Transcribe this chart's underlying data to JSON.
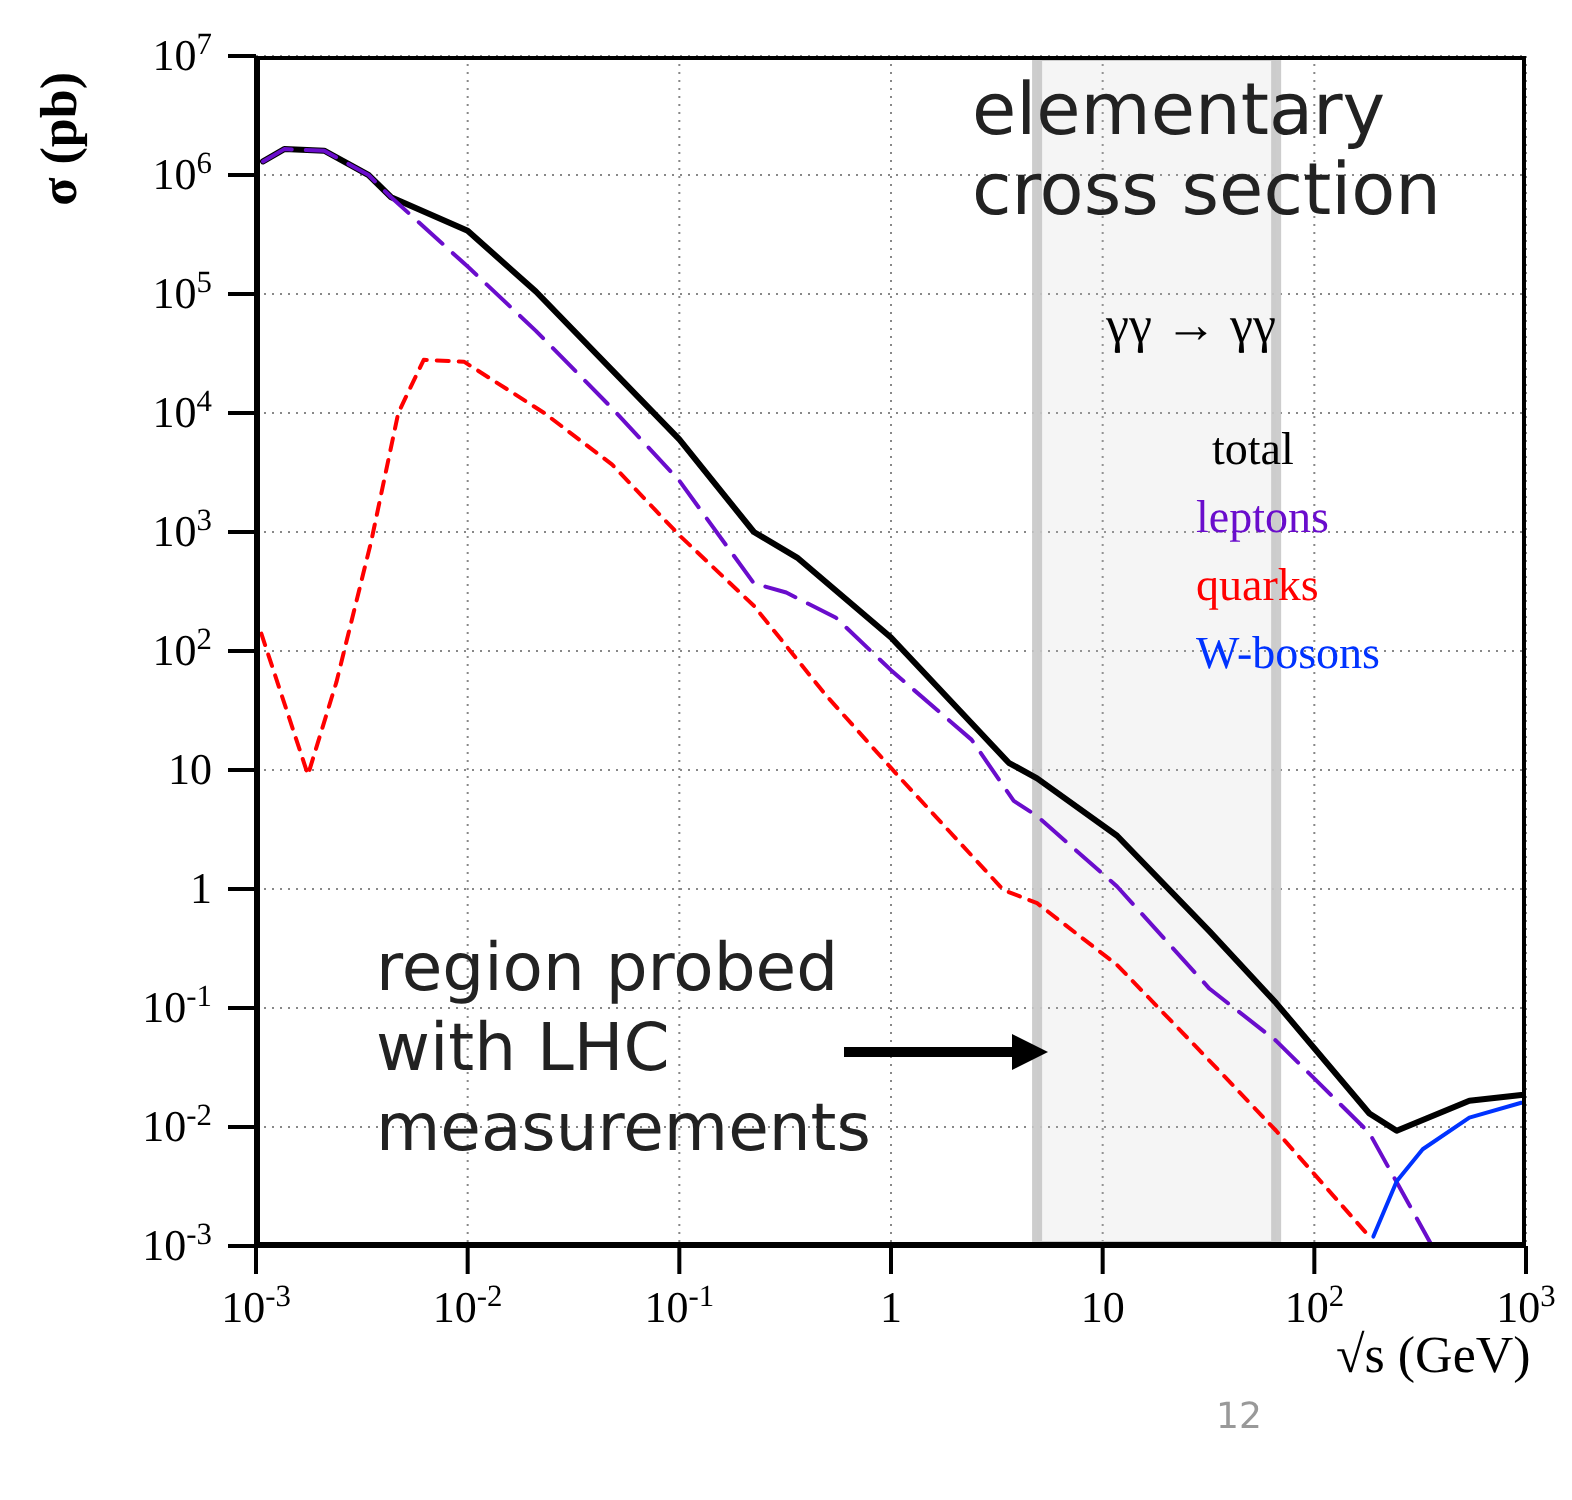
{
  "chart_data": {
    "type": "line",
    "title": "elementary\ncross section",
    "subtitle": "γγ → γγ",
    "xlabel": "√s (GeV)",
    "ylabel": "σ (pb)",
    "log": "xy",
    "grid": true,
    "legend": "top right",
    "marker": "none",
    "xlim": [
      0.001,
      1000
    ],
    "ylim": [
      0.001,
      10000000
    ],
    "xticks": [
      {
        "value": 0.001,
        "label": "10$^{-3}$"
      },
      {
        "value": 0.01,
        "label": "10$^{-2}$"
      },
      {
        "value": 0.1,
        "label": "10$^{-1}$"
      },
      1,
      10,
      {
        "value": 100,
        "label": "10$^{2}$"
      },
      {
        "value": 1000,
        "label": "10$^{3}$"
      }
    ],
    "yticks": [
      {
        "value": 0.001,
        "label": "10$^{-3}$"
      },
      {
        "value": 0.01,
        "label": "10$^{-2}$"
      },
      {
        "value": 0.1,
        "label": "10$^{-1}$"
      },
      1,
      10,
      {
        "value": 100,
        "label": "10$^{2}$"
      },
      {
        "value": 1000,
        "label": "10$^{3}$"
      },
      {
        "value": 10000,
        "label": "10$^{4}$"
      },
      {
        "value": 100000,
        "label": "10$^{5}$"
      },
      {
        "value": 1000000,
        "label": "10$^{6}$"
      },
      {
        "value": 10000000,
        "label": "10$^{7}$"
      }
    ],
    "series": [
      {
        "name": "total",
        "color": "#000000",
        "line_style": "solid",
        "x": [
          0.00108,
          0.00136,
          0.0021,
          0.0034,
          0.00435,
          0.01,
          0.021,
          0.048,
          0.1,
          0.225,
          0.36,
          1.0,
          3.6,
          4.9,
          11.7,
          32,
          66,
          182,
          245,
          540,
          950
        ],
        "values": [
          1300000,
          1650000,
          1600000,
          1000000,
          650000,
          340000,
          105000,
          23000,
          6000,
          1000,
          610,
          130,
          11.5,
          8.5,
          2.8,
          0.44,
          0.11,
          0.013,
          0.0093,
          0.0166,
          0.0186
        ]
      },
      {
        "name": "leptons",
        "color": "#6a0dcc",
        "line_style": "dashed",
        "x": [
          0.00108,
          0.00136,
          0.0021,
          0.0034,
          0.00435,
          0.01,
          0.021,
          0.048,
          0.1,
          0.225,
          0.32,
          0.55,
          1.0,
          2.4,
          3.8,
          4.9,
          11.7,
          32,
          66,
          182,
          360
        ],
        "values": [
          1300000,
          1650000,
          1600000,
          1000000,
          650000,
          170000,
          49000,
          11000,
          2700,
          370,
          310,
          190,
          69,
          18,
          5.5,
          4.1,
          1.05,
          0.145,
          0.053,
          0.0089,
          0.001
        ]
      },
      {
        "name": "quarks",
        "color": "#ff0000",
        "line_style": "dashed",
        "x": [
          0.00106,
          0.00176,
          0.0024,
          0.0035,
          0.0047,
          0.0062,
          0.0096,
          0.023,
          0.048,
          0.1,
          0.225,
          0.49,
          1.07,
          3.4,
          4.9,
          11.7,
          32,
          66,
          182
        ],
        "values": [
          140,
          9.1,
          55,
          830,
          10000,
          28000,
          27000,
          10000,
          3700,
          940,
          240,
          43,
          9.1,
          0.98,
          0.76,
          0.23,
          0.036,
          0.0093,
          0.0012
        ]
      },
      {
        "name": "W-bosons",
        "color": "#0033ff",
        "line_style": "solid",
        "x": [
          190,
          245,
          325,
          540,
          950
        ],
        "values": [
          0.0012,
          0.0035,
          0.0065,
          0.012,
          0.016
        ]
      }
    ],
    "bands": [
      {
        "axis": "x",
        "from": 4.9,
        "to": 66,
        "color": "#c8c8c8"
      }
    ],
    "annotations": [
      "region probed\nwith LHC\nmeasurements",
      "12"
    ]
  }
}
